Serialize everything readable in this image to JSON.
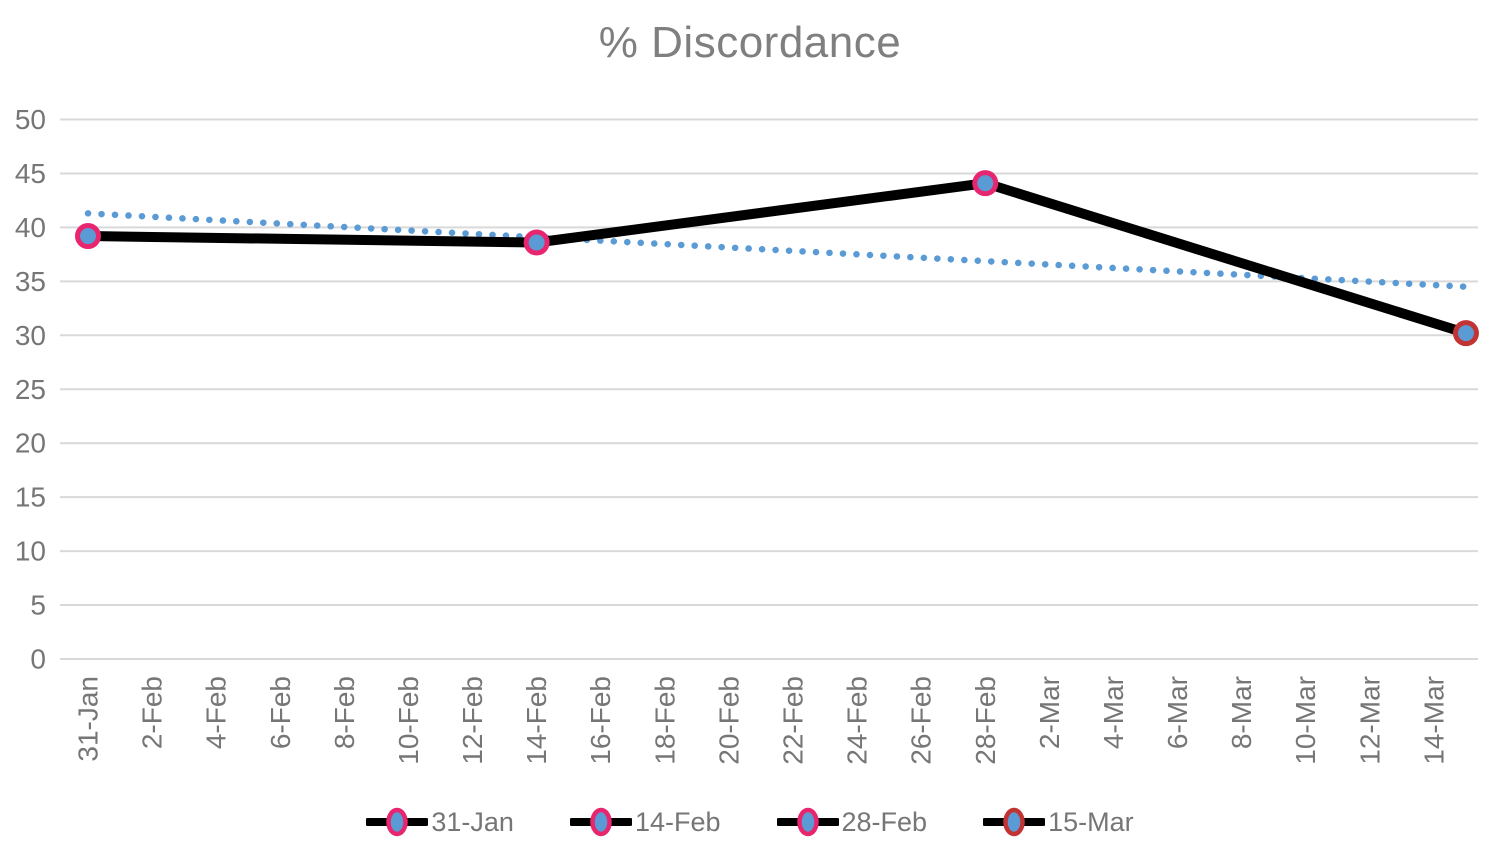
{
  "chart_data": {
    "type": "line",
    "title": "% Discordance",
    "xlabel": "",
    "ylabel": "",
    "ylim": [
      0,
      50
    ],
    "y_ticks": [
      0,
      5,
      10,
      15,
      20,
      25,
      30,
      35,
      40,
      45,
      50
    ],
    "x_ticks": [
      {
        "day": 0,
        "label": "31-Jan"
      },
      {
        "day": 2,
        "label": "2-Feb"
      },
      {
        "day": 4,
        "label": "4-Feb"
      },
      {
        "day": 6,
        "label": "6-Feb"
      },
      {
        "day": 8,
        "label": "8-Feb"
      },
      {
        "day": 10,
        "label": "10-Feb"
      },
      {
        "day": 12,
        "label": "12-Feb"
      },
      {
        "day": 14,
        "label": "14-Feb"
      },
      {
        "day": 16,
        "label": "16-Feb"
      },
      {
        "day": 18,
        "label": "18-Feb"
      },
      {
        "day": 20,
        "label": "20-Feb"
      },
      {
        "day": 22,
        "label": "22-Feb"
      },
      {
        "day": 24,
        "label": "24-Feb"
      },
      {
        "day": 26,
        "label": "26-Feb"
      },
      {
        "day": 28,
        "label": "28-Feb"
      },
      {
        "day": 30,
        "label": "2-Mar"
      },
      {
        "day": 32,
        "label": "4-Mar"
      },
      {
        "day": 34,
        "label": "6-Mar"
      },
      {
        "day": 36,
        "label": "8-Mar"
      },
      {
        "day": 38,
        "label": "10-Mar"
      },
      {
        "day": 40,
        "label": "12-Mar"
      },
      {
        "day": 42,
        "label": "14-Mar"
      }
    ],
    "points": [
      {
        "label": "31-Jan",
        "day": 0,
        "value": 39.2,
        "marker_ring": "#E8256F"
      },
      {
        "label": "14-Feb",
        "day": 14,
        "value": 38.6,
        "marker_ring": "#E8256F"
      },
      {
        "label": "28-Feb",
        "day": 28,
        "value": 44.1,
        "marker_ring": "#E8256F"
      },
      {
        "label": "15-Mar",
        "day": 43,
        "value": 30.2,
        "marker_ring": "#C23434"
      }
    ],
    "trendline": {
      "style": "dotted",
      "color": "#5B9BD5",
      "start_day": 0,
      "start_value": 41.3,
      "end_day": 43,
      "end_value": 34.5
    },
    "legend": [
      {
        "label": "31-Jan",
        "ring": "#E8256F",
        "fill": "#5B9BD5",
        "line": "#000000"
      },
      {
        "label": "14-Feb",
        "ring": "#E8256F",
        "fill": "#5B9BD5",
        "line": "#000000"
      },
      {
        "label": "28-Feb",
        "ring": "#E8256F",
        "fill": "#5B9BD5",
        "line": "#000000"
      },
      {
        "label": "15-Mar",
        "ring": "#C23434",
        "fill": "#5B9BD5",
        "line": "#000000"
      }
    ],
    "legend_position": "bottom",
    "grid": "horizontal",
    "colors": {
      "series_line": "#000000",
      "marker_fill": "#5B9BD5",
      "gridline": "#D9D9D9",
      "axis_text": "#767676",
      "title_text": "#7F7F7F",
      "background": "#FFFFFF"
    }
  }
}
